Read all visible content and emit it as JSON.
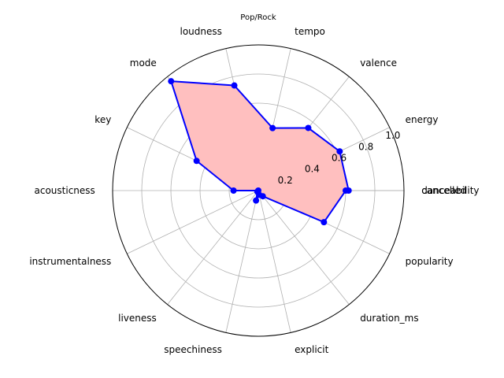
{
  "chart_data": {
    "type": "radar",
    "title": "Pop/Rock",
    "categories": [
      "danceability",
      "energy",
      "valence",
      "tempo",
      "loudness",
      "mode",
      "key",
      "acousticness",
      "instrumentalness",
      "liveness",
      "speechiness",
      "explicit",
      "duration_ms",
      "popularity",
      "cancelled"
    ],
    "series": [
      {
        "values": [
          0.62,
          0.62,
          0.55,
          0.44,
          0.74,
          0.96,
          0.47,
          0.17,
          0.0,
          0.01,
          0.07,
          0.03,
          0.05,
          0.5,
          0.6
        ]
      }
    ],
    "rlim": [
      0,
      1.0
    ],
    "rticks": [
      "0.2",
      "0.4",
      "0.6",
      "0.8",
      "1.0"
    ],
    "grid": true,
    "colors": {
      "line": "#0000ff",
      "marker": "#0000ff",
      "fill": "#ffbfbf",
      "grid": "#b0b0b0",
      "frame": "#000000"
    }
  }
}
